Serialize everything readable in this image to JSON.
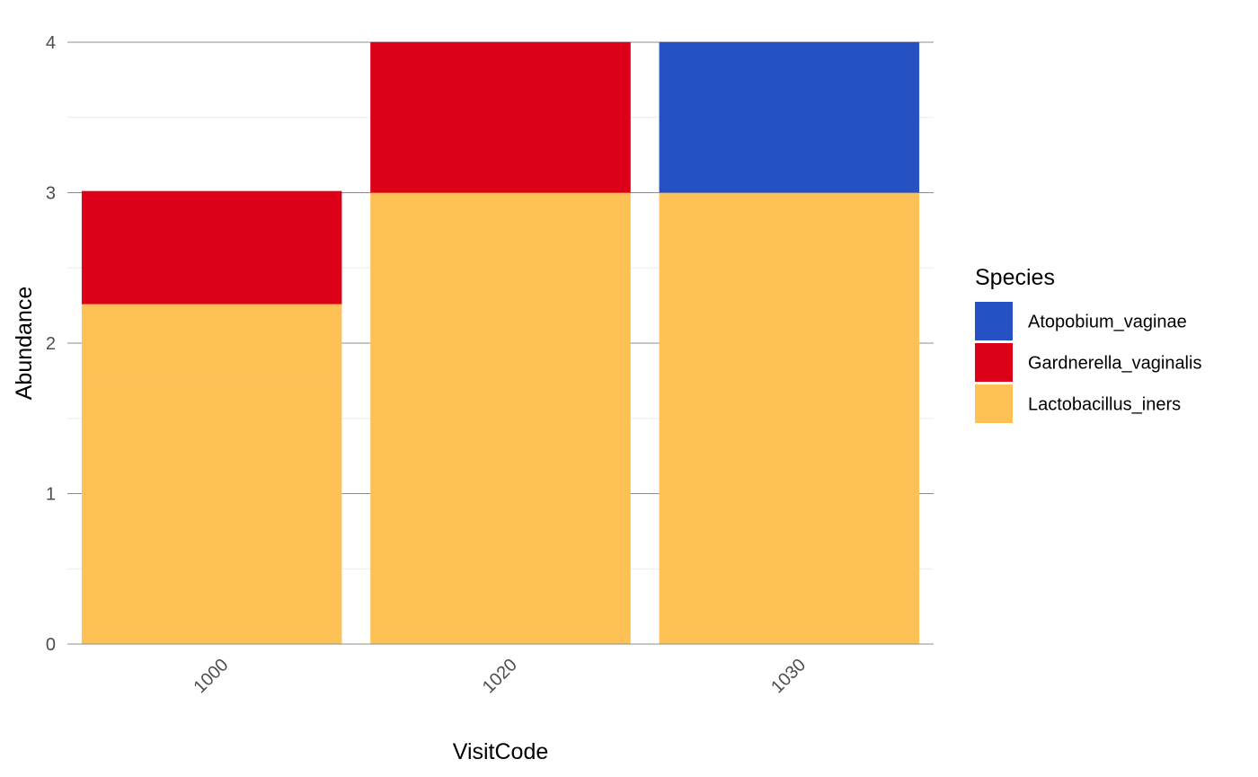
{
  "chart_data": {
    "type": "bar",
    "stacked": true,
    "xlabel": "VisitCode",
    "ylabel": "Abundance",
    "categories": [
      "1000",
      "1020",
      "1030"
    ],
    "ylim": [
      0,
      4
    ],
    "yticks": [
      "0",
      "1",
      "2",
      "3",
      "4"
    ],
    "grid": true,
    "legend": {
      "title": "Species",
      "placement": "right"
    },
    "series": [
      {
        "name": "Lactobacillus_iners",
        "color": "#FDC155",
        "segments": [
          [
            1.76,
            0.5
          ],
          [
            3
          ],
          [
            3
          ]
        ]
      },
      {
        "name": "Gardnerella_vaginalis",
        "color": "#DC0019",
        "segments": [
          [
            0.51,
            0.24
          ],
          [
            1
          ],
          [
            0
          ]
        ]
      },
      {
        "name": "Atopobium_vaginae",
        "color": "#2651C2",
        "segments": [
          [
            0
          ],
          [
            0
          ],
          [
            1
          ]
        ]
      }
    ],
    "legend_order": [
      "Atopobium_vaginae",
      "Gardnerella_vaginalis",
      "Lactobacillus_iners"
    ]
  }
}
